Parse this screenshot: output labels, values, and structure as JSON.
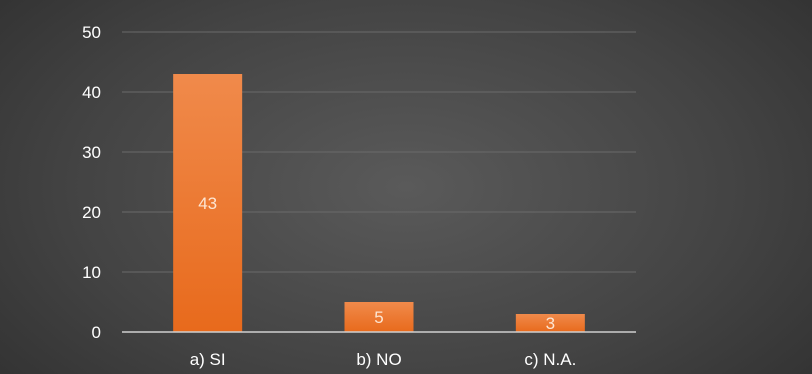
{
  "chart_data": {
    "type": "bar",
    "title": "",
    "xlabel": "",
    "ylabel": "",
    "categories": [
      "a) SI",
      "b) NO",
      "c) N.A."
    ],
    "values": [
      43,
      5,
      3
    ],
    "data_labels": [
      "43",
      "5",
      "3"
    ],
    "ylim": [
      0,
      50
    ],
    "yticks": [
      0,
      10,
      20,
      30,
      40,
      50
    ],
    "ytick_labels": [
      "0",
      "10",
      "20",
      "30",
      "40",
      "50"
    ],
    "grid": true,
    "legend": "none",
    "colors": {
      "bar_top": "#f08a4b",
      "bar_bottom": "#e86a1c",
      "grid": "#6a6a6a",
      "axis": "#cfcfcf",
      "text": "#ffffff",
      "data_label": "#fde5d2"
    }
  }
}
